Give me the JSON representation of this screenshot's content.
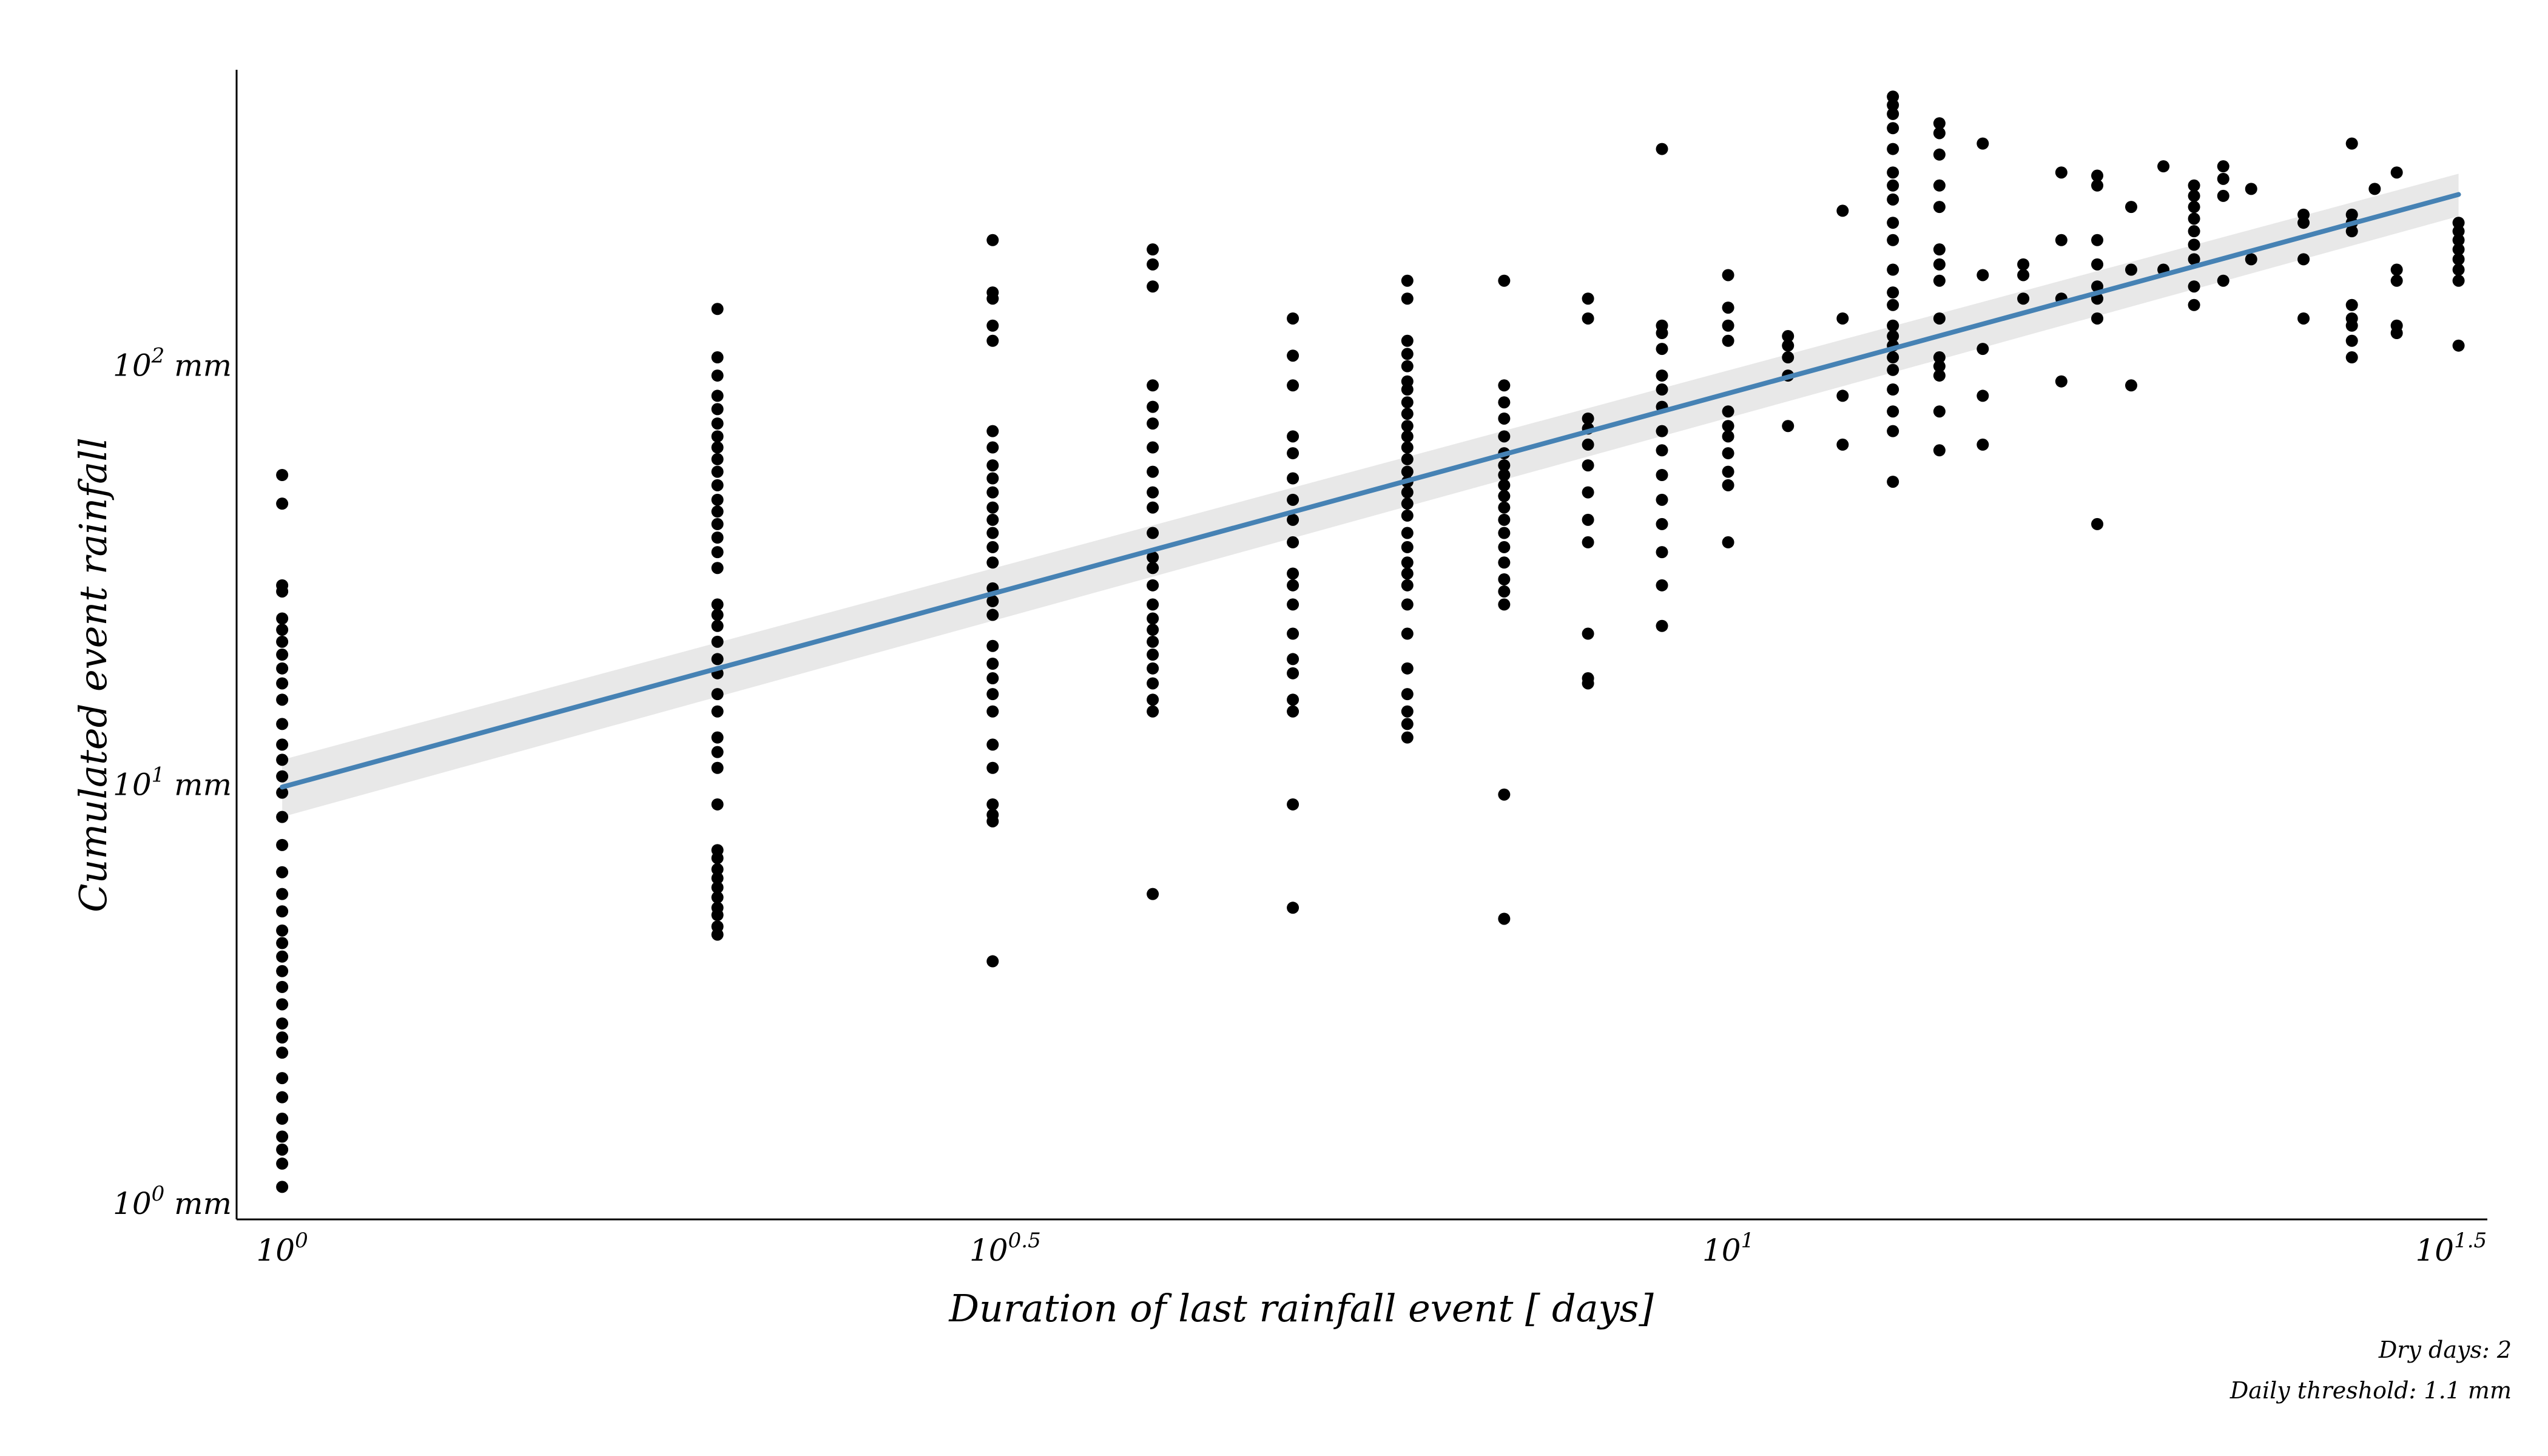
{
  "chart_data": {
    "type": "scatter",
    "xlabel": "Duration of last rainfall event [ days]",
    "ylabel": "Cumulated event rainfall",
    "x_scale": "log",
    "y_scale": "log",
    "xlim": [
      0.93,
      33.5
    ],
    "ylim": [
      0.92,
      510
    ],
    "x_ticks": [
      {
        "value": 1,
        "base": "10",
        "exp": "0",
        "suffix": ""
      },
      {
        "value": 3.1623,
        "base": "10",
        "exp": "0.5",
        "suffix": ""
      },
      {
        "value": 10,
        "base": "10",
        "exp": "1",
        "suffix": ""
      },
      {
        "value": 31.623,
        "base": "10",
        "exp": "1.5",
        "suffix": ""
      }
    ],
    "y_ticks": [
      {
        "value": 1,
        "base": "10",
        "exp": "0",
        "suffix": " mm"
      },
      {
        "value": 10,
        "base": "10",
        "exp": "1",
        "suffix": " mm"
      },
      {
        "value": 100,
        "base": "10",
        "exp": "2",
        "suffix": " mm"
      }
    ],
    "grid": false,
    "colors": {
      "points": "#000000",
      "fit_line": "#4682b4",
      "confidence_band": "#d9d9d9"
    },
    "regression": {
      "x": [
        1,
        32
      ],
      "y": [
        9.9,
        257
      ],
      "band_lower": [
        8.4,
        228
      ],
      "band_upper": [
        11.5,
        288
      ]
    },
    "series": [
      {
        "x": 1,
        "y": [
          1.1,
          1.25,
          1.35,
          1.45,
          1.6,
          1.8,
          2.0,
          2.3,
          2.5,
          2.7,
          3.0,
          3.3,
          3.6,
          3.9,
          4.2,
          4.5,
          5.0,
          5.5,
          6.2,
          7.2,
          8.4,
          9.6,
          10.5,
          11.5,
          12.5,
          14.0,
          16.0,
          17.5,
          19.0,
          20.5,
          22.0,
          23.5,
          25.0,
          29.0,
          30.0,
          47.0,
          55.0
        ]
      },
      {
        "x": 2,
        "y": [
          4.4,
          4.6,
          4.9,
          5.1,
          5.4,
          5.7,
          6.0,
          6.3,
          6.7,
          7.0,
          9.0,
          11.0,
          12.0,
          13.0,
          15.0,
          16.5,
          18.5,
          20.0,
          22.0,
          24.0,
          25.5,
          27.0,
          33.0,
          36.0,
          39.0,
          42.0,
          45.0,
          48.0,
          52.0,
          56.0,
          60.0,
          64.0,
          68.0,
          73.0,
          79.0,
          85.0,
          95.0,
          105.0,
          137.0
        ]
      },
      {
        "x": 3.1,
        "y": [
          3.8,
          8.2,
          8.5,
          9.0,
          11.0,
          12.5,
          15.0,
          16.5,
          18.0,
          19.5,
          21.5,
          25.5,
          27.5,
          29.5,
          34.0,
          37.0,
          40.0,
          43.0,
          46.0,
          50.0,
          54.0,
          58.0,
          64.0,
          70.0,
          115.0,
          125.0,
          145.0,
          150.0,
          200.0
        ]
      },
      {
        "x": 4.0,
        "y": [
          5.5,
          15.0,
          16.0,
          17.5,
          19.0,
          20.5,
          22.0,
          23.5,
          25.0,
          27.0,
          30.0,
          33.0,
          35.0,
          40.0,
          46.0,
          50.0,
          56.0,
          64.0,
          73.0,
          80.0,
          90.0,
          155.0,
          175.0,
          190.0
        ]
      },
      {
        "x": 5.0,
        "y": [
          5.1,
          9.0,
          15.0,
          16.0,
          18.5,
          20.0,
          23.0,
          27.0,
          30.0,
          32.0,
          38.0,
          43.0,
          48.0,
          54.0,
          62.0,
          68.0,
          90.0,
          106.0,
          130.0
        ]
      },
      {
        "x": 6.0,
        "y": [
          13.0,
          14.0,
          15.0,
          16.5,
          19.0,
          23.0,
          27.0,
          30.0,
          32.0,
          34.0,
          37.0,
          40.0,
          44.0,
          47.0,
          50.0,
          53.0,
          56.0,
          60.0,
          64.0,
          68.0,
          72.0,
          77.0,
          82.0,
          88.0,
          92.0,
          100.0,
          107.0,
          115.0,
          145.0,
          160.0
        ]
      },
      {
        "x": 7.0,
        "y": [
          4.8,
          9.5,
          27.0,
          29.0,
          31.0,
          34.0,
          37.0,
          40.0,
          43.0,
          46.0,
          49.0,
          52.0,
          55.0,
          58.0,
          62.0,
          68.0,
          75.0,
          82.0,
          90.0,
          160.0
        ]
      },
      {
        "x": 8.0,
        "y": [
          17.5,
          18.0,
          23.0,
          38.0,
          43.0,
          50.0,
          58.0,
          65.0,
          71.0,
          75.0,
          130.0,
          145.0
        ]
      },
      {
        "x": 9.0,
        "y": [
          24.0,
          30.0,
          36.0,
          42.0,
          48.0,
          55.0,
          63.0,
          70.0,
          80.0,
          88.0,
          95.0,
          110.0,
          120.0,
          125.0,
          330.0
        ]
      },
      {
        "x": 10.0,
        "y": [
          38.0,
          52.0,
          56.0,
          62.0,
          68.0,
          72.0,
          78.0,
          115.0,
          125.0,
          138.0,
          165.0
        ]
      },
      {
        "x": 11.0,
        "y": [
          72.0,
          95.0,
          105.0,
          112.0,
          118.0
        ]
      },
      {
        "x": 12.0,
        "y": [
          65.0,
          85.0,
          130.0,
          235.0
        ]
      },
      {
        "x": 13.0,
        "y": [
          53.0,
          70.0,
          78.0,
          88.0,
          98.0,
          105.0,
          112.0,
          118.0,
          125.0,
          140.0,
          150.0,
          170.0,
          200.0,
          220.0,
          250.0,
          270.0,
          290.0,
          330.0,
          370.0,
          400.0,
          420.0,
          440.0
        ]
      },
      {
        "x": 14.0,
        "y": [
          63.0,
          78.0,
          95.0,
          100.0,
          105.0,
          130.0,
          160.0,
          175.0,
          190.0,
          240.0,
          270.0,
          320.0,
          360.0,
          380.0
        ]
      },
      {
        "x": 15.0,
        "y": [
          65.0,
          85.0,
          110.0,
          165.0,
          340.0
        ]
      },
      {
        "x": 16.0,
        "y": [
          145.0,
          165.0,
          175.0
        ]
      },
      {
        "x": 17.0,
        "y": [
          92.0,
          145.0,
          200.0,
          290.0
        ]
      },
      {
        "x": 18.0,
        "y": [
          42.0,
          130.0,
          145.0,
          155.0,
          175.0,
          200.0,
          270.0,
          285.0
        ]
      },
      {
        "x": 19.0,
        "y": [
          90.0,
          170.0,
          240.0
        ]
      },
      {
        "x": 20.0,
        "y": [
          170.0,
          300.0
        ]
      },
      {
        "x": 21.0,
        "y": [
          140.0,
          155.0,
          180.0,
          195.0,
          210.0,
          225.0,
          240.0,
          255.0,
          270.0
        ]
      },
      {
        "x": 22.0,
        "y": [
          160.0,
          255.0,
          280.0,
          300.0
        ]
      },
      {
        "x": 23.0,
        "y": [
          180.0,
          265.0
        ]
      },
      {
        "x": 25.0,
        "y": [
          130.0,
          180.0,
          220.0,
          230.0
        ]
      },
      {
        "x": 27.0,
        "y": [
          105.0,
          115.0,
          125.0,
          130.0,
          140.0,
          210.0,
          220.0,
          230.0,
          340.0
        ]
      },
      {
        "x": 28.0,
        "y": [
          265.0
        ]
      },
      {
        "x": 29.0,
        "y": [
          120.0,
          125.0,
          160.0,
          170.0,
          290.0
        ]
      },
      {
        "x": 32.0,
        "y": [
          112.0,
          160.0,
          170.0,
          180.0,
          190.0,
          200.0,
          210.0,
          220.0
        ]
      }
    ]
  },
  "captions": {
    "line1": "Dry days: 2",
    "line2": "Daily threshold: 1.1 mm"
  }
}
